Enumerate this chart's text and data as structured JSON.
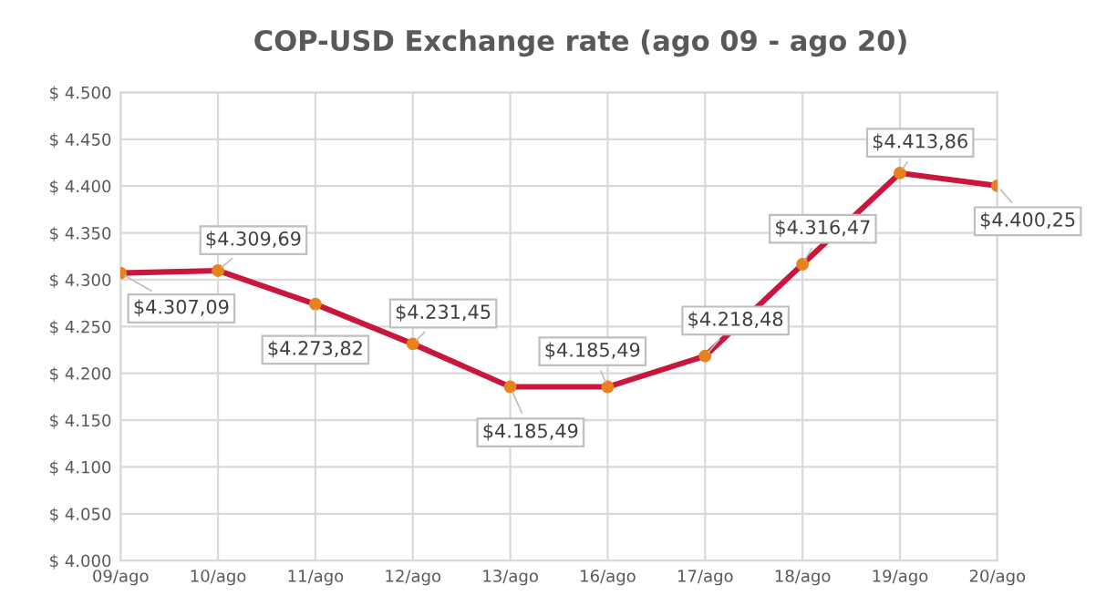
{
  "chart_data": {
    "type": "line",
    "title": "COP-USD Exchange rate (ago 09 - ago 20)",
    "categories": [
      "09/ago",
      "10/ago",
      "11/ago",
      "12/ago",
      "13/ago",
      "16/ago",
      "17/ago",
      "18/ago",
      "19/ago",
      "20/ago"
    ],
    "series": [
      {
        "color": "#c8163c",
        "values": [
          4307.09,
          4309.69,
          4273.82,
          4231.45,
          4185.49,
          4185.49,
          4218.48,
          4316.47,
          4413.86,
          4400.25
        ],
        "value_labels": [
          "$4.307,09",
          "$4.309,69",
          "$4.273,82",
          "$4.231,45",
          "$4.185,49",
          "$4.185,49",
          "$4.218,48",
          "$4.316,47",
          "$4.413,86",
          "$4.400,25"
        ]
      }
    ],
    "ylim": [
      4000,
      4500
    ],
    "yticks": [
      {
        "value": 4000,
        "label": "$ 4.000"
      },
      {
        "value": 4050,
        "label": "$ 4.050"
      },
      {
        "value": 4100,
        "label": "$ 4.100"
      },
      {
        "value": 4150,
        "label": "$ 4.150"
      },
      {
        "value": 4200,
        "label": "$ 4.200"
      },
      {
        "value": 4250,
        "label": "$ 4.250"
      },
      {
        "value": 4300,
        "label": "$ 4.300"
      },
      {
        "value": 4350,
        "label": "$ 4.350"
      },
      {
        "value": 4400,
        "label": "$ 4.400"
      },
      {
        "value": 4450,
        "label": "$ 4.450"
      },
      {
        "value": 4500,
        "label": "$ 4.500"
      }
    ],
    "grid": true,
    "marker": "circle",
    "line_style": "solid"
  }
}
